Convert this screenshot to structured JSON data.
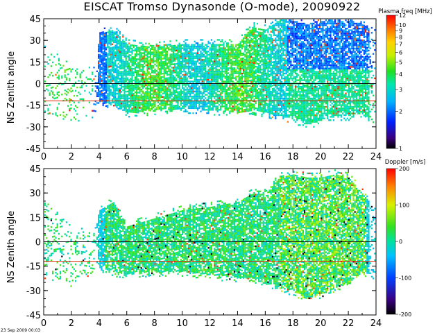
{
  "title": "EISCAT Tromso Dynasonde (O-mode),  20090922",
  "footer_timestamp": "23 Sep 2009 00:03",
  "chart_data": [
    {
      "type": "heatmap",
      "panel": "top",
      "ylabel": "NS Zenith angle",
      "xlabel": "",
      "xlim": [
        0,
        24
      ],
      "ylim": [
        -45,
        45
      ],
      "xticks": [
        0,
        2,
        4,
        6,
        8,
        10,
        12,
        14,
        16,
        18,
        20,
        22,
        24
      ],
      "yticks": [
        45,
        30,
        15,
        0,
        -15,
        -30,
        -45
      ],
      "reference_lines": [
        {
          "y": 0,
          "color": "#000000"
        },
        {
          "y": -12,
          "color": "#dd2200"
        }
      ],
      "colorbar": {
        "label": "Plasma freq [MHz]",
        "range": [
          1,
          12
        ],
        "ticks": [
          "12",
          "10",
          "9",
          "8",
          "7",
          "6",
          "5",
          "4",
          "3",
          "2",
          "1"
        ],
        "tick_values": [
          12,
          10,
          9,
          8,
          7,
          6,
          5,
          4,
          3,
          2,
          1
        ],
        "scale": "log"
      },
      "echo_band": {
        "hours": [
          0,
          2,
          3.6,
          4,
          5,
          6,
          8,
          10,
          12,
          14,
          15,
          16,
          17,
          18,
          19,
          20,
          21,
          22,
          23,
          24
        ],
        "upper": [
          25,
          10,
          10,
          35,
          38,
          28,
          26,
          28,
          28,
          28,
          40,
          38,
          45,
          44,
          42,
          44,
          45,
          44,
          42,
          35
        ],
        "lower": [
          -20,
          -25,
          -20,
          -12,
          -15,
          -20,
          -18,
          -17,
          -18,
          -20,
          -18,
          -20,
          -22,
          -24,
          -28,
          -25,
          -22,
          -22,
          -20,
          -30
        ]
      }
    },
    {
      "type": "heatmap",
      "panel": "bottom",
      "ylabel": "NS Zenith angle",
      "xlabel": "",
      "xlim": [
        0,
        24
      ],
      "ylim": [
        -45,
        45
      ],
      "xticks": [
        0,
        2,
        4,
        6,
        8,
        10,
        12,
        14,
        16,
        18,
        20,
        22,
        24
      ],
      "yticks": [
        45,
        30,
        15,
        0,
        -15,
        -30,
        -45
      ],
      "reference_lines": [
        {
          "y": 0,
          "color": "#000000"
        },
        {
          "y": -12,
          "color": "#dd2200"
        }
      ],
      "colorbar": {
        "label": "Doppler [m/s]",
        "range": [
          -200,
          200
        ],
        "ticks": [
          "200",
          "100",
          "0",
          "-100",
          "-200"
        ],
        "tick_values": [
          200,
          100,
          0,
          -100,
          -200
        ],
        "scale": "linear"
      },
      "echo_band": {
        "hours": [
          0,
          2,
          3.6,
          4,
          5,
          6,
          8,
          10,
          12,
          14,
          15,
          16,
          17,
          18,
          19,
          20,
          21,
          22,
          23,
          24
        ],
        "upper": [
          25,
          10,
          8,
          20,
          25,
          10,
          15,
          20,
          22,
          25,
          30,
          30,
          40,
          42,
          40,
          40,
          42,
          40,
          30,
          20
        ],
        "lower": [
          -20,
          -25,
          -18,
          -15,
          -18,
          -20,
          -18,
          -18,
          -20,
          -22,
          -22,
          -25,
          -28,
          -30,
          -35,
          -32,
          -28,
          -25,
          -18,
          -20
        ]
      }
    }
  ]
}
